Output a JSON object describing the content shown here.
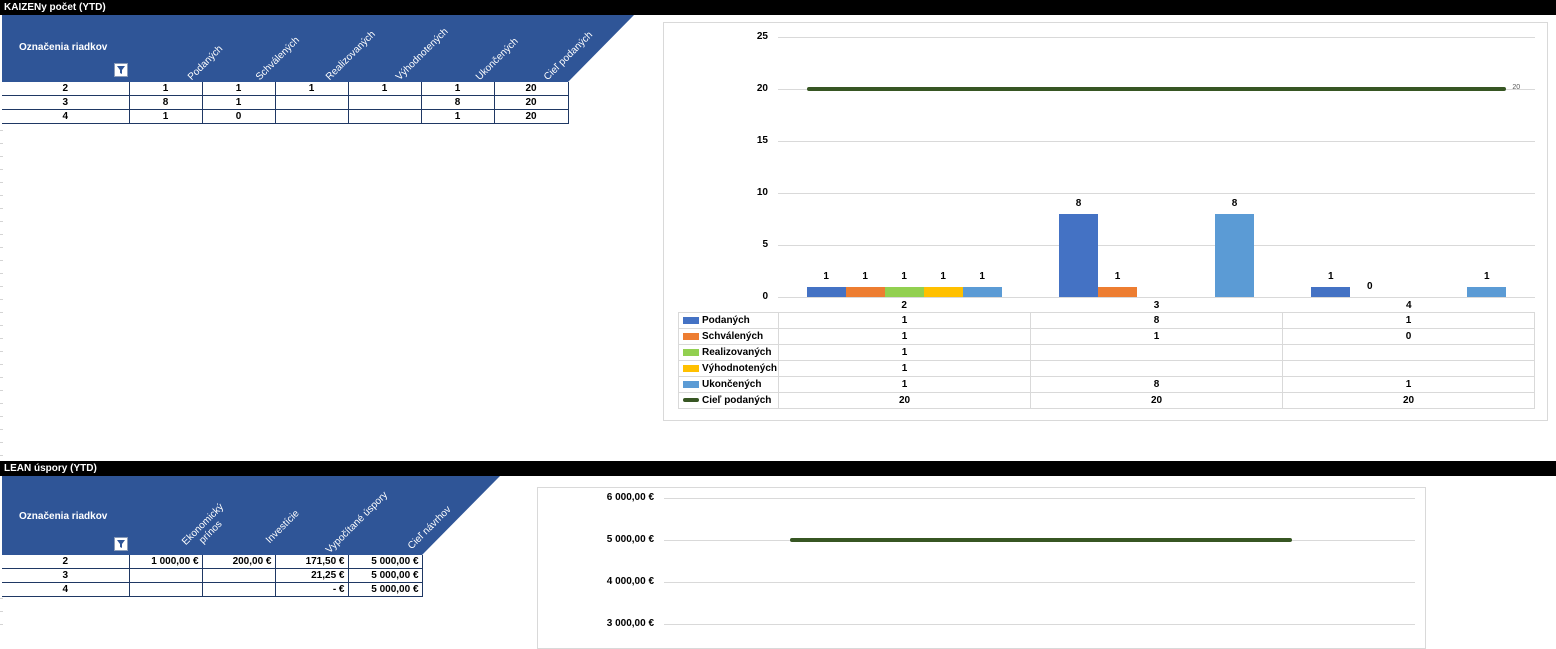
{
  "kaizen": {
    "title": "KAIZENy počet (YTD)",
    "row_label_header": "Označenia riadkov",
    "columns": [
      "Podaných",
      "Schválených",
      "Realizovaných",
      "Výhodnotených",
      "Ukončených",
      "Cieľ podaných"
    ],
    "rows": [
      [
        "2",
        "1",
        "1",
        "1",
        "1",
        "1",
        "20"
      ],
      [
        "3",
        "8",
        "1",
        "",
        "",
        "8",
        "20"
      ],
      [
        "4",
        "1",
        "0",
        "",
        "",
        "1",
        "20"
      ]
    ]
  },
  "lean": {
    "title": "LEAN úspory (YTD)",
    "row_label_header": "Označenia riadkov",
    "columns": [
      "Ekonomický prínos",
      "Investície",
      "Vypočítané úspory",
      "Cieľ návrhov"
    ],
    "rows": [
      [
        "2",
        "1 000,00 €",
        "200,00 €",
        "171,50 €",
        "5 000,00 €"
      ],
      [
        "3",
        "",
        "",
        "21,25 €",
        "5 000,00 €"
      ],
      [
        "4",
        "",
        "",
        "-    €",
        "5 000,00 €"
      ]
    ]
  },
  "chart_data": [
    {
      "type": "bar",
      "categories": [
        "2",
        "3",
        "4"
      ],
      "ylim": [
        0,
        25
      ],
      "yticks": [
        "0",
        "5",
        "10",
        "15",
        "20",
        "25"
      ],
      "series": [
        {
          "name": "Podaných",
          "color": "#4472c4",
          "values": [
            1,
            8,
            1
          ]
        },
        {
          "name": "Schválených",
          "color": "#ed7d31",
          "values": [
            1,
            1,
            0
          ]
        },
        {
          "name": "Realizovaných",
          "color": "#92d050",
          "values": [
            1,
            null,
            null
          ]
        },
        {
          "name": "Výhodnotených",
          "color": "#ffc000",
          "values": [
            1,
            null,
            null
          ]
        },
        {
          "name": "Ukončených",
          "color": "#5b9bd5",
          "values": [
            1,
            8,
            1
          ]
        },
        {
          "name": "Cieľ podaných",
          "color": "#375623",
          "values": [
            20,
            20,
            20
          ],
          "render": "line"
        }
      ],
      "data_table": {
        "categories": [
          "2",
          "3",
          "4"
        ],
        "rows": [
          {
            "name": "Podaných",
            "values": [
              "1",
              "8",
              "1"
            ]
          },
          {
            "name": "Schválených",
            "values": [
              "1",
              "1",
              "0"
            ]
          },
          {
            "name": "Realizovaných",
            "values": [
              "1",
              "",
              ""
            ]
          },
          {
            "name": "Výhodnotených",
            "values": [
              "1",
              "",
              ""
            ]
          },
          {
            "name": "Ukončených",
            "values": [
              "1",
              "8",
              "1"
            ]
          },
          {
            "name": "Cieľ podaných",
            "values": [
              "20",
              "20",
              "20"
            ]
          }
        ]
      },
      "line_end_label": "20",
      "grid": true
    },
    {
      "type": "line",
      "yticks": [
        "6 000,00 €",
        "5 000,00 €",
        "4 000,00 €",
        "3 000,00 €"
      ],
      "series": [
        {
          "color": "#375623",
          "values": [
            5000,
            5000,
            5000
          ]
        }
      ],
      "grid": true
    }
  ],
  "icons": {
    "filter": "filter-icon"
  }
}
